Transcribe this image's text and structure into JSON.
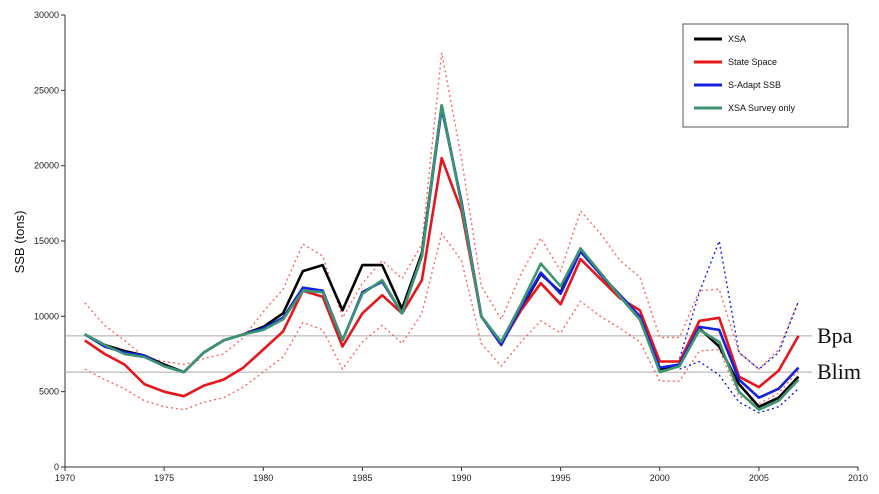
{
  "chart_data": {
    "type": "line",
    "ylabel": "SSB (tons)",
    "xlim": [
      1970,
      2010
    ],
    "ylim": [
      0,
      30000
    ],
    "xticks": [
      1970,
      1975,
      1980,
      1985,
      1990,
      1995,
      2000,
      2005,
      2010
    ],
    "yticks": [
      0,
      5000,
      10000,
      15000,
      20000,
      25000,
      30000
    ],
    "legend_position": "top-right",
    "grid": false,
    "reference_lines": [
      {
        "label": "Bpa",
        "y": 8700,
        "color": "#aaaaaa"
      },
      {
        "label": "Blim",
        "y": 6300,
        "color": "#aaaaaa"
      }
    ],
    "series": [
      {
        "name": "XSA",
        "color": "#000000",
        "x": [
          1971,
          1972,
          1973,
          1974,
          1975,
          1976,
          1977,
          1978,
          1979,
          1980,
          1981,
          1982,
          1983,
          1984,
          1985,
          1986,
          1987,
          1988,
          1989,
          1990,
          1991,
          1992,
          1993,
          1994,
          1995,
          1996,
          1997,
          1998,
          1999,
          2000,
          2001,
          2002,
          2003,
          2004,
          2005,
          2006,
          2007
        ],
        "y": [
          8800,
          8100,
          7700,
          7400,
          6800,
          6300,
          7600,
          8400,
          8800,
          9300,
          10200,
          13000,
          13400,
          10400,
          13400,
          13400,
          10500,
          14200,
          24000,
          17500,
          10000,
          8200,
          10500,
          12800,
          11600,
          14500,
          12800,
          11300,
          9800,
          6500,
          6800,
          9200,
          8000,
          5500,
          4000,
          4600,
          6000
        ]
      },
      {
        "name": "State Space",
        "color": "#e8151b",
        "x": [
          1971,
          1972,
          1973,
          1974,
          1975,
          1976,
          1977,
          1978,
          1979,
          1980,
          1981,
          1982,
          1983,
          1984,
          1985,
          1986,
          1987,
          1988,
          1989,
          1990,
          1991,
          1992,
          1993,
          1994,
          1995,
          1996,
          1997,
          1998,
          1999,
          2000,
          2001,
          2002,
          2003,
          2004,
          2005,
          2006,
          2007
        ],
        "y": [
          8400,
          7500,
          6800,
          5500,
          5000,
          4700,
          5400,
          5800,
          6600,
          7800,
          9000,
          11700,
          11300,
          8000,
          10200,
          11400,
          10200,
          12400,
          20500,
          17000,
          10000,
          8200,
          10400,
          12200,
          10800,
          13800,
          12500,
          11200,
          10400,
          7000,
          7000,
          9700,
          9900,
          6000,
          5300,
          6400,
          8700
        ]
      },
      {
        "name": "S-Adapt SSB",
        "color": "#1421e0",
        "x": [
          1971,
          1972,
          1973,
          1974,
          1975,
          1976,
          1977,
          1978,
          1979,
          1980,
          1981,
          1982,
          1983,
          1984,
          1985,
          1986,
          1987,
          1988,
          1989,
          1990,
          1991,
          1992,
          1993,
          1994,
          1995,
          1996,
          1997,
          1998,
          1999,
          2000,
          2001,
          2002,
          2003,
          2004,
          2005,
          2006,
          2007
        ],
        "y": [
          8800,
          8000,
          7600,
          7400,
          6700,
          6300,
          7600,
          8400,
          8800,
          9200,
          9900,
          11900,
          11700,
          8400,
          11600,
          12300,
          10200,
          14000,
          23800,
          17600,
          10000,
          8100,
          10600,
          12900,
          11500,
          14300,
          12800,
          11400,
          10000,
          6600,
          6800,
          9300,
          9100,
          5800,
          4600,
          5200,
          6600
        ]
      },
      {
        "name": "XSA Survey only",
        "color": "#3d9470",
        "x": [
          1971,
          1972,
          1973,
          1974,
          1975,
          1976,
          1977,
          1978,
          1979,
          1980,
          1981,
          1982,
          1983,
          1984,
          1985,
          1986,
          1987,
          1988,
          1989,
          1990,
          1991,
          1992,
          1993,
          1994,
          1995,
          1996,
          1997,
          1998,
          1999,
          2000,
          2001,
          2002,
          2003,
          2004,
          2005,
          2006,
          2007
        ],
        "y": [
          8800,
          8100,
          7500,
          7300,
          6700,
          6300,
          7600,
          8400,
          8800,
          9100,
          9800,
          11700,
          11600,
          8400,
          11500,
          12400,
          10200,
          14000,
          24000,
          17400,
          10000,
          8300,
          10800,
          13500,
          12000,
          14500,
          12900,
          11300,
          9800,
          6300,
          6700,
          9100,
          8300,
          5000,
          3800,
          4400,
          5800
        ]
      }
    ],
    "confidence_bands": [
      {
        "series": "State Space",
        "color": "#ff6666",
        "x": [
          1971,
          1972,
          1973,
          1974,
          1975,
          1976,
          1977,
          1978,
          1979,
          1980,
          1981,
          1982,
          1983,
          1984,
          1985,
          1986,
          1987,
          1988,
          1989,
          1990,
          1991,
          1992,
          1993,
          1994,
          1995,
          1996,
          1997,
          1998,
          1999,
          2000,
          2001,
          2002,
          2003,
          2004,
          2005,
          2006,
          2007
        ],
        "upper": [
          10900,
          9400,
          8400,
          7300,
          7000,
          6800,
          7200,
          7500,
          8600,
          10300,
          11800,
          14800,
          14000,
          9900,
          12200,
          13700,
          12500,
          14800,
          27500,
          20500,
          12000,
          9800,
          12800,
          15200,
          13000,
          17000,
          15500,
          13700,
          12600,
          8600,
          8600,
          11700,
          11800,
          7600,
          6500,
          7800,
          11000
        ],
        "lower": [
          6500,
          5800,
          5200,
          4400,
          4000,
          3800,
          4300,
          4600,
          5300,
          6300,
          7300,
          9600,
          9100,
          6500,
          8300,
          9400,
          8200,
          10200,
          15500,
          13700,
          8200,
          6700,
          8300,
          9700,
          8900,
          11000,
          10000,
          9200,
          8300,
          5700,
          5700,
          7700,
          7800,
          4700,
          4200,
          4900,
          6400
        ]
      },
      {
        "series": "S-Adapt SSB",
        "color": "#1421e0",
        "x": [
          2001,
          2002,
          2003,
          2004,
          2005,
          2006,
          2007
        ],
        "upper": [
          7200,
          11600,
          15000,
          7600,
          6500,
          7600,
          11000
        ],
        "lower": [
          6500,
          7000,
          6100,
          4300,
          3600,
          4000,
          5200
        ]
      }
    ]
  }
}
